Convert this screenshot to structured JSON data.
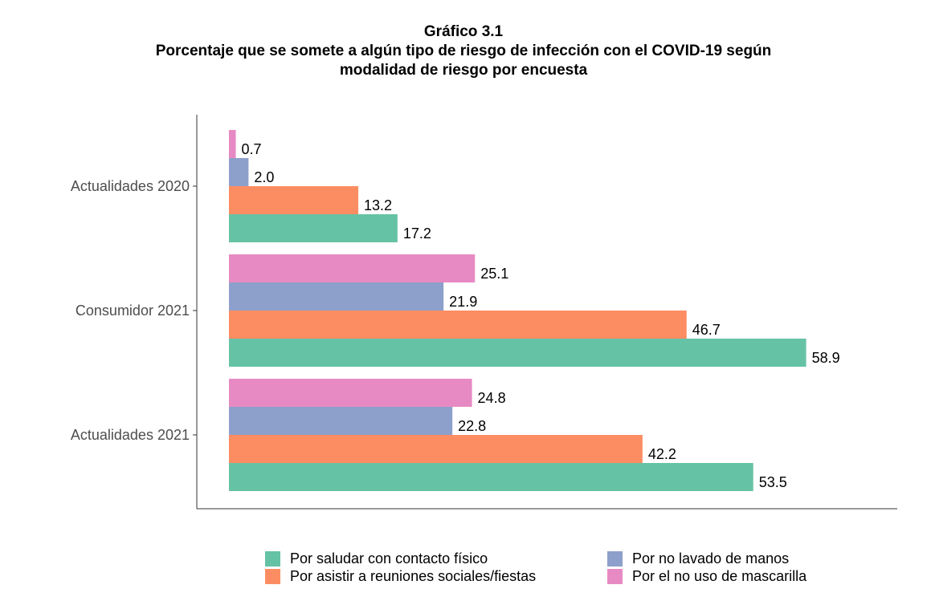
{
  "chart_data": {
    "type": "bar",
    "orientation": "horizontal",
    "title": "Gráfico 3.1",
    "subtitle_lines": [
      "Porcentaje que se somete a algún tipo de riesgo de infección con el COVID-19 según",
      "modalidad de riesgo por encuesta"
    ],
    "xlabel": "",
    "ylabel": "",
    "xlim": [
      0,
      68
    ],
    "grid": false,
    "legend_position": "bottom",
    "categories": [
      "Actualidades 2020",
      "Consumidor 2021",
      "Actualidades 2021"
    ],
    "series": [
      {
        "name": "Por el no uso de  mascarilla",
        "color": "#e78ac3",
        "values": [
          0.7,
          25.1,
          24.8
        ],
        "labels": [
          "0.7",
          "25.1",
          "24.8"
        ]
      },
      {
        "name": "Por no lavado de manos",
        "color": "#8da0cb",
        "values": [
          2.0,
          21.9,
          22.8
        ],
        "labels": [
          "2.0",
          "21.9",
          "22.8"
        ]
      },
      {
        "name": "Por asistir a reuniones sociales/fiestas",
        "color": "#fc8d62",
        "values": [
          13.2,
          46.7,
          42.2
        ],
        "labels": [
          "13.2",
          "46.7",
          "42.2"
        ]
      },
      {
        "name": "Por saludar con contacto físico",
        "color": "#66c2a5",
        "values": [
          17.2,
          58.9,
          53.5
        ],
        "labels": [
          "17.2",
          "58.9",
          "53.5"
        ]
      }
    ],
    "legend": [
      {
        "name": "Por saludar con contacto físico",
        "color": "#66c2a5"
      },
      {
        "name": "Por no lavado de manos",
        "color": "#8da0cb"
      },
      {
        "name": "Por asistir a reuniones sociales/fiestas",
        "color": "#fc8d62"
      },
      {
        "name": "Por el no uso de  mascarilla",
        "color": "#e78ac3"
      }
    ]
  }
}
